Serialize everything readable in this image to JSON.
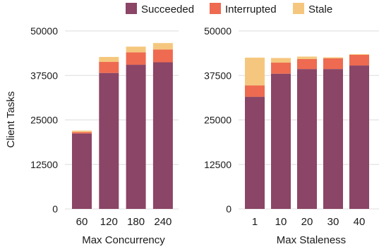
{
  "legend": {
    "items": [
      {
        "label": "Succeeded",
        "color": "#8b4566"
      },
      {
        "label": "Interrupted",
        "color": "#ee6a50"
      },
      {
        "label": "Stale",
        "color": "#f5c77e"
      }
    ],
    "placement": "top-center"
  },
  "chart_data": [
    {
      "type": "bar",
      "stacked": true,
      "xlabel": "Max Concurrency",
      "ylabel": "Client Tasks",
      "ylim": [
        0,
        50000
      ],
      "yticks": [
        "0",
        "12500",
        "25000",
        "37500",
        "50000"
      ],
      "categories": [
        "60",
        "120",
        "180",
        "240"
      ],
      "grid": true,
      "series": [
        {
          "name": "Succeeded",
          "color": "#8b4566",
          "values": [
            21200,
            38200,
            40500,
            41200
          ]
        },
        {
          "name": "Interrupted",
          "color": "#ee6a50",
          "values": [
            400,
            3100,
            3500,
            3600
          ]
        },
        {
          "name": "Stale",
          "color": "#f5c77e",
          "values": [
            400,
            1400,
            1600,
            1800
          ]
        }
      ]
    },
    {
      "type": "bar",
      "stacked": true,
      "xlabel": "Max Staleness",
      "ylabel": "",
      "ylim": [
        0,
        50000
      ],
      "yticks": [
        "0",
        "12500",
        "25000",
        "37500",
        "50000"
      ],
      "categories": [
        "1",
        "10",
        "20",
        "30",
        "40"
      ],
      "grid": true,
      "series": [
        {
          "name": "Succeeded",
          "color": "#8b4566",
          "values": [
            31500,
            38000,
            39300,
            39300,
            40300
          ]
        },
        {
          "name": "Interrupted",
          "color": "#ee6a50",
          "values": [
            3200,
            3100,
            2800,
            3000,
            3000
          ]
        },
        {
          "name": "Stale",
          "color": "#f5c77e",
          "values": [
            7800,
            1300,
            700,
            300,
            200
          ]
        }
      ]
    }
  ]
}
